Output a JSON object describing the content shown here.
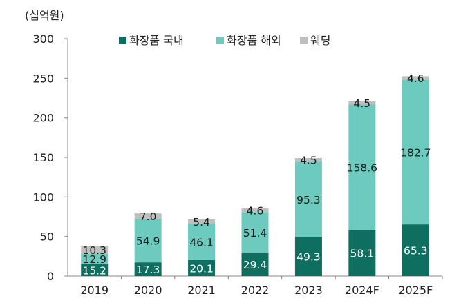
{
  "chart_data": {
    "type": "bar",
    "stacked": true,
    "unit_label": "(십억원)",
    "categories": [
      "2019",
      "2020",
      "2021",
      "2022",
      "2023",
      "2024F",
      "2025F"
    ],
    "series": [
      {
        "name": "화장품 국내",
        "color": "#0e6e5f",
        "label_color": "#ffffff",
        "values": [
          15.2,
          17.3,
          20.1,
          29.4,
          49.3,
          58.1,
          65.3
        ]
      },
      {
        "name": "화장품 해외",
        "color": "#6ccbbe",
        "label_color": "#1a1a1a",
        "values": [
          12.9,
          54.9,
          46.1,
          51.4,
          95.3,
          158.6,
          182.7
        ]
      },
      {
        "name": "웨딩",
        "color": "#bfbfbf",
        "label_color": "#1a1a1a",
        "values": [
          10.3,
          7.0,
          5.4,
          4.6,
          4.5,
          4.5,
          4.6
        ]
      }
    ],
    "y_ticks": [
      "0",
      "50",
      "100",
      "150",
      "200",
      "250",
      "300"
    ],
    "ylim": [
      0,
      300
    ],
    "grid": false,
    "legend_position": "top-center"
  }
}
